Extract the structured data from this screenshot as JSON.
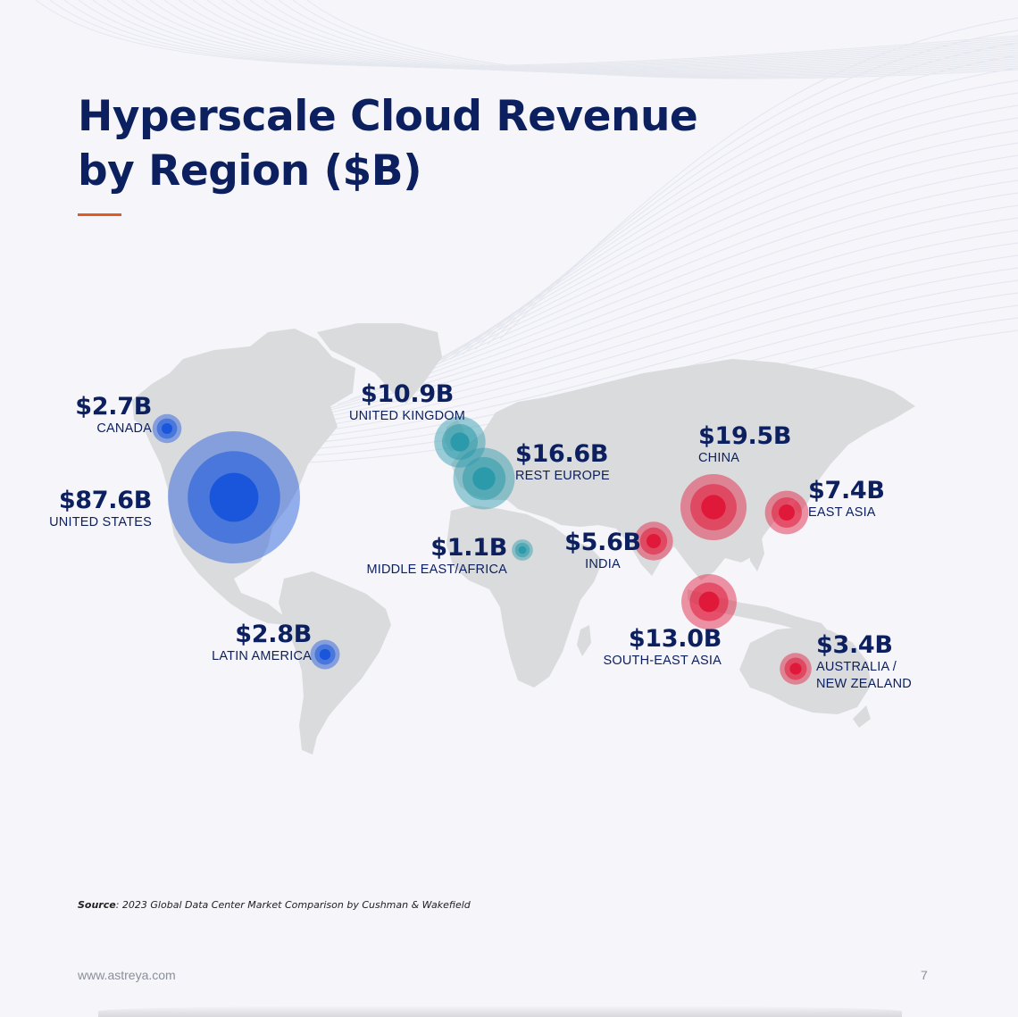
{
  "title": {
    "line1": "Hyperscale Cloud Revenue",
    "line2": "by Region ($B)"
  },
  "colors": {
    "title": "#0c1f5e",
    "accent_underline": "#e05a22",
    "americas": "#1a56db",
    "europe": "#2b9aaa",
    "asia_pacific": "#e0193a",
    "land": "#dadbdd",
    "background": "#f5f5fa"
  },
  "regions": [
    {
      "id": "canada",
      "value_label": "$2.7B",
      "name": "CANADA",
      "value": 2.7,
      "group": "americas"
    },
    {
      "id": "united-states",
      "value_label": "$87.6B",
      "name": "UNITED STATES",
      "value": 87.6,
      "group": "americas"
    },
    {
      "id": "latin-america",
      "value_label": "$2.8B",
      "name": "LATIN AMERICA",
      "value": 2.8,
      "group": "americas"
    },
    {
      "id": "united-kingdom",
      "value_label": "$10.9B",
      "name": "UNITED KINGDOM",
      "value": 10.9,
      "group": "europe"
    },
    {
      "id": "rest-europe",
      "value_label": "$16.6B",
      "name": "REST EUROPE",
      "value": 16.6,
      "group": "europe"
    },
    {
      "id": "middle-east-africa",
      "value_label": "$1.1B",
      "name": "MIDDLE EAST/AFRICA",
      "value": 1.1,
      "group": "europe"
    },
    {
      "id": "china",
      "value_label": "$19.5B",
      "name": "CHINA",
      "value": 19.5,
      "group": "asia_pacific"
    },
    {
      "id": "east-asia",
      "value_label": "$7.4B",
      "name": "EAST ASIA",
      "value": 7.4,
      "group": "asia_pacific"
    },
    {
      "id": "india",
      "value_label": "$5.6B",
      "name": "INDIA",
      "value": 5.6,
      "group": "asia_pacific"
    },
    {
      "id": "south-east-asia",
      "value_label": "$13.0B",
      "name": "SOUTH-EAST ASIA",
      "value": 13.0,
      "group": "asia_pacific"
    },
    {
      "id": "australia-new-zealand",
      "value_label": "$3.4B",
      "name_line1": "AUSTRALIA /",
      "name_line2": "NEW ZEALAND",
      "value": 3.4,
      "group": "asia_pacific"
    }
  ],
  "source": {
    "label": "Source",
    "text": ": 2023 Global Data Center Market Comparison by Cushman & Wakefield"
  },
  "footer": {
    "url": "www.astreya.com",
    "page": "7"
  }
}
